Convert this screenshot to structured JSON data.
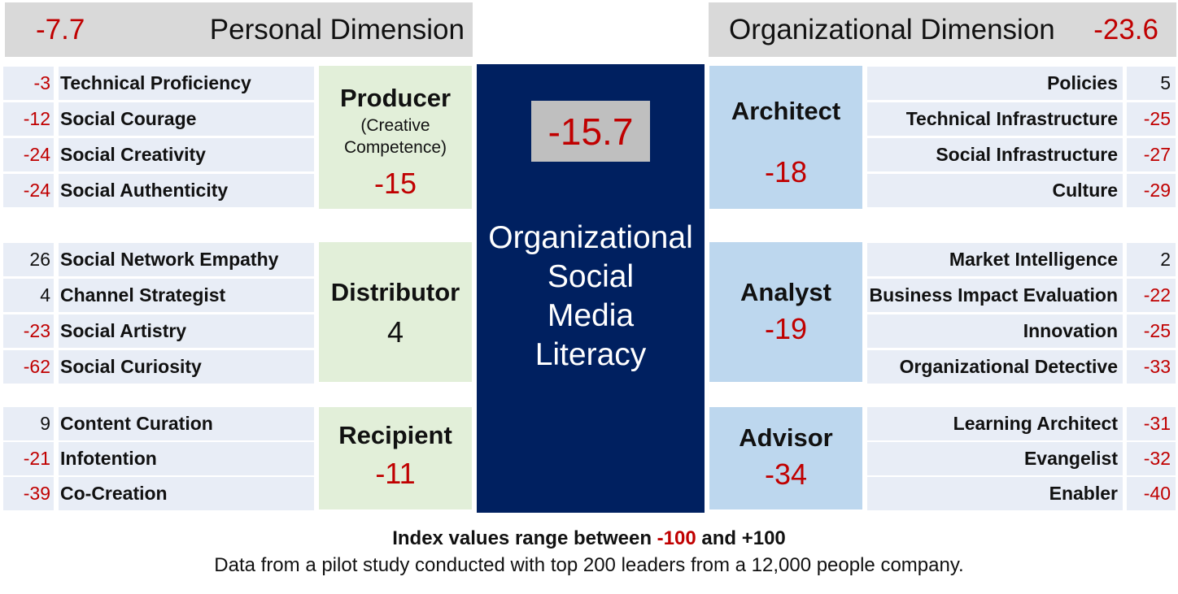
{
  "personal": {
    "value": "-7.7",
    "title": "Personal Dimension"
  },
  "organizational": {
    "value": "-23.6",
    "title": "Organizational Dimension"
  },
  "center": {
    "value": "-15.7",
    "title": [
      "Organizational",
      "Social",
      "Media",
      "Literacy"
    ]
  },
  "roles": {
    "producer": {
      "name": "Producer",
      "sub1": "(Creative",
      "sub2": "Competence)",
      "value": "-15"
    },
    "distributor": {
      "name": "Distributor",
      "value": "4"
    },
    "recipient": {
      "name": "Recipient",
      "value": "-11"
    },
    "architect": {
      "name": "Architect",
      "value": "-18"
    },
    "analyst": {
      "name": "Analyst",
      "value": "-19"
    },
    "advisor": {
      "name": "Advisor",
      "value": "-34"
    }
  },
  "left_items": [
    {
      "value": "-3",
      "label": "Technical Proficiency"
    },
    {
      "value": "-12",
      "label": "Social Courage"
    },
    {
      "value": "-24",
      "label": "Social Creativity"
    },
    {
      "value": "-24",
      "label": "Social Authenticity"
    },
    {
      "value": "26",
      "label": "Social Network Empathy"
    },
    {
      "value": "4",
      "label": "Channel Strategist"
    },
    {
      "value": "-23",
      "label": "Social Artistry"
    },
    {
      "value": "-62",
      "label": "Social Curiosity"
    },
    {
      "value": "9",
      "label": "Content Curation"
    },
    {
      "value": "-21",
      "label": "Infotention"
    },
    {
      "value": "-39",
      "label": "Co-Creation"
    }
  ],
  "right_items": [
    {
      "label": "Policies",
      "value": "5"
    },
    {
      "label": "Technical Infrastructure",
      "value": "-25"
    },
    {
      "label": "Social Infrastructure",
      "value": "-27"
    },
    {
      "label": "Culture",
      "value": "-29"
    },
    {
      "label": "Market Intelligence",
      "value": "2"
    },
    {
      "label": "Business Impact Evaluation",
      "value": "-22"
    },
    {
      "label": "Innovation",
      "value": "-25"
    },
    {
      "label": "Organizational Detective",
      "value": "-33"
    },
    {
      "label": "Learning Architect",
      "value": "-31"
    },
    {
      "label": "Evangelist",
      "value": "-32"
    },
    {
      "label": "Enabler",
      "value": "-40"
    }
  ],
  "footer": {
    "line1_prefix": "Index values range between ",
    "line1_min": "-100",
    "line1_mid": " and ",
    "line1_max": "+100",
    "line2": "Data from a pilot study conducted with top 200 leaders from a 12,000 people company."
  }
}
